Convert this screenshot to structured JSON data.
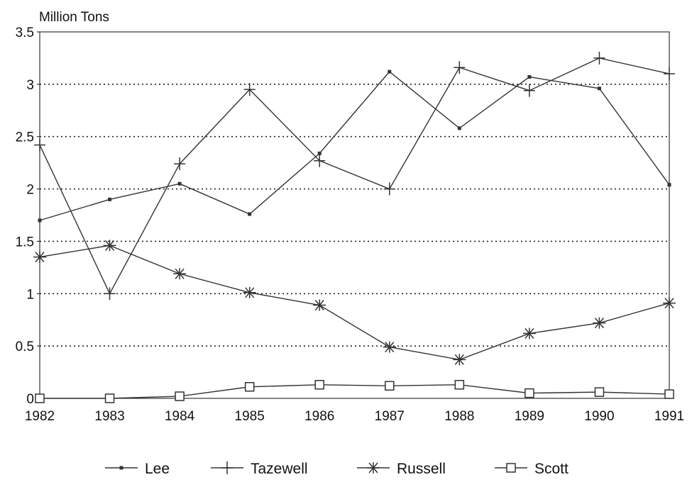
{
  "chart_data": {
    "type": "line",
    "ylabel": "Million Tons",
    "xlabel": "",
    "ylim": [
      0,
      3.5
    ],
    "yticks": [
      0,
      0.5,
      1,
      1.5,
      2,
      2.5,
      3,
      3.5
    ],
    "y_tick_labels": [
      "0",
      "0.5",
      "1",
      "1.5",
      "2",
      "2.5",
      "3",
      "3.5"
    ],
    "categories": [
      "1982",
      "1983",
      "1984",
      "1985",
      "1986",
      "1987",
      "1988",
      "1989",
      "1990",
      "1991"
    ],
    "grid": "horizontal dotted",
    "legend_position": "bottom",
    "series": [
      {
        "name": "Lee",
        "marker": "small-square",
        "values": [
          1.7,
          1.9,
          2.05,
          1.76,
          2.34,
          3.12,
          2.58,
          3.07,
          2.96,
          2.04
        ]
      },
      {
        "name": "Tazewell",
        "marker": "plus",
        "values": [
          2.42,
          1.0,
          2.24,
          2.95,
          2.27,
          2.0,
          3.16,
          2.94,
          3.25,
          3.1
        ]
      },
      {
        "name": "Russell",
        "marker": "asterisk",
        "values": [
          1.35,
          1.46,
          1.19,
          1.01,
          0.89,
          0.49,
          0.37,
          0.62,
          0.72,
          0.91
        ]
      },
      {
        "name": "Scott",
        "marker": "open-square",
        "values": [
          0.0,
          0.0,
          0.02,
          0.11,
          0.13,
          0.12,
          0.13,
          0.05,
          0.06,
          0.04
        ]
      }
    ]
  }
}
